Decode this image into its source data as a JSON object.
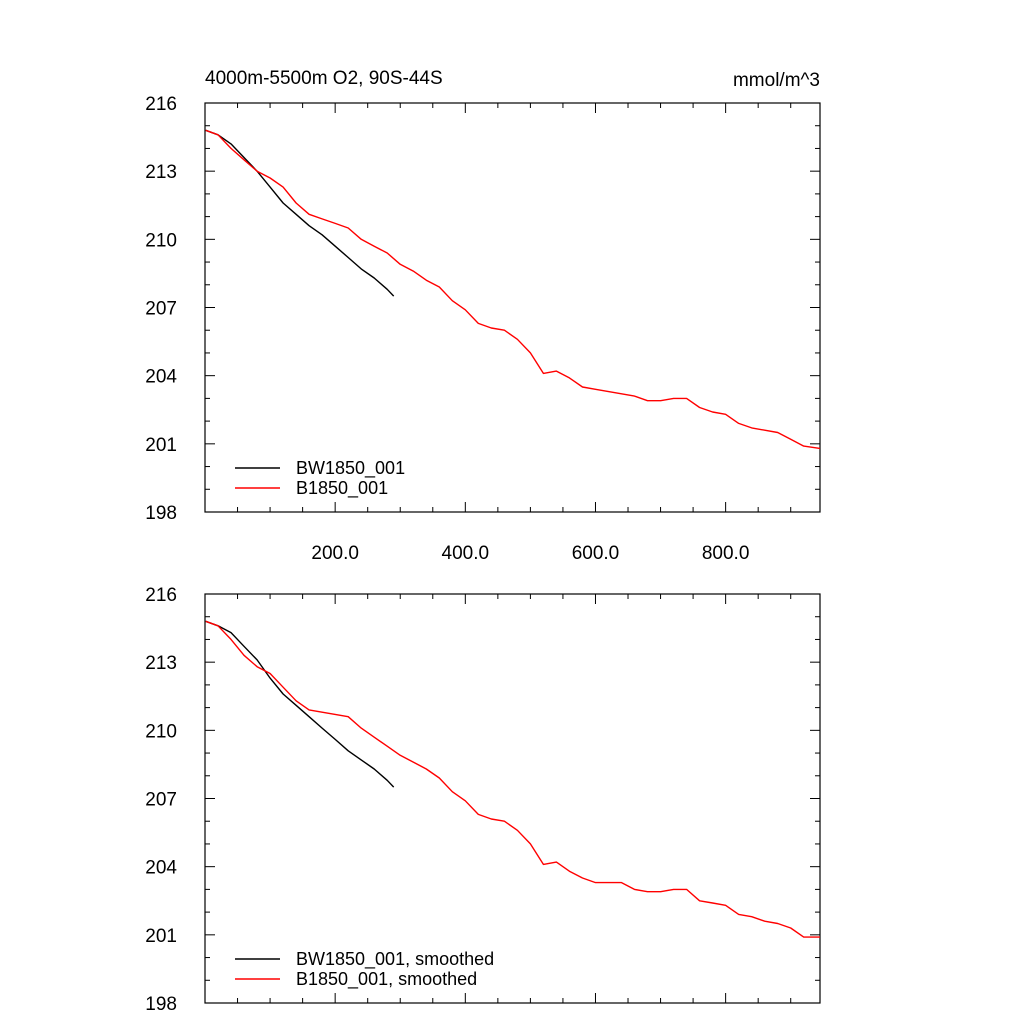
{
  "chart_data": [
    {
      "type": "line",
      "title": "4000m-5500m O2, 90S-44S",
      "units": "mmol/m^3",
      "xlabel": "",
      "ylabel": "",
      "xlim": [
        0,
        945
      ],
      "ylim": [
        198,
        216
      ],
      "xticks": [
        200,
        400,
        600,
        800
      ],
      "xtick_labels": [
        "200.0",
        "400.0",
        "600.0",
        "800.0"
      ],
      "yticks": [
        198,
        201,
        204,
        207,
        210,
        213,
        216
      ],
      "ytick_labels": [
        "198",
        "201",
        "204",
        "207",
        "210",
        "213",
        "216"
      ],
      "grid": false,
      "legend_position": "bottom-left",
      "series": [
        {
          "name": "BW1850_001",
          "color": "#000000",
          "x": [
            1,
            20,
            40,
            60,
            80,
            100,
            120,
            140,
            160,
            180,
            200,
            220,
            240,
            260,
            280,
            290
          ],
          "y": [
            214.8,
            214.6,
            214.2,
            213.6,
            213.0,
            212.3,
            211.6,
            211.1,
            210.6,
            210.2,
            209.7,
            209.2,
            208.7,
            208.3,
            207.8,
            207.5
          ]
        },
        {
          "name": "B1850_001",
          "color": "#ff0000",
          "x": [
            1,
            20,
            40,
            60,
            80,
            100,
            120,
            140,
            160,
            180,
            200,
            220,
            240,
            260,
            280,
            300,
            320,
            340,
            360,
            380,
            400,
            420,
            440,
            460,
            480,
            500,
            520,
            540,
            560,
            580,
            600,
            620,
            640,
            660,
            680,
            700,
            720,
            740,
            760,
            780,
            800,
            820,
            840,
            860,
            880,
            900,
            920,
            945
          ],
          "y": [
            214.8,
            214.6,
            214.0,
            213.5,
            213.0,
            212.7,
            212.3,
            211.6,
            211.1,
            210.9,
            210.7,
            210.5,
            210.0,
            209.7,
            209.4,
            208.9,
            208.6,
            208.2,
            207.9,
            207.3,
            206.9,
            206.3,
            206.1,
            206.0,
            205.6,
            205.0,
            204.1,
            204.2,
            203.9,
            203.5,
            203.4,
            203.3,
            203.2,
            203.1,
            202.9,
            202.9,
            203.0,
            203.0,
            202.6,
            202.4,
            202.3,
            201.9,
            201.7,
            201.6,
            201.5,
            201.2,
            200.9,
            200.8
          ]
        }
      ]
    },
    {
      "type": "line",
      "title": "",
      "xlabel": "",
      "ylabel": "",
      "xlim": [
        0,
        945
      ],
      "ylim": [
        198,
        216
      ],
      "xticks": [
        200,
        400,
        600,
        800
      ],
      "xtick_labels": [],
      "yticks": [
        198,
        201,
        204,
        207,
        210,
        213,
        216
      ],
      "ytick_labels": [
        "198",
        "201",
        "204",
        "207",
        "210",
        "213",
        "216"
      ],
      "grid": false,
      "legend_position": "bottom-left",
      "series": [
        {
          "name": "BW1850_001, smoothed",
          "color": "#000000",
          "x": [
            1,
            20,
            40,
            60,
            80,
            100,
            120,
            140,
            160,
            180,
            200,
            220,
            240,
            260,
            280,
            290
          ],
          "y": [
            214.8,
            214.6,
            214.3,
            213.7,
            213.1,
            212.3,
            211.6,
            211.1,
            210.6,
            210.1,
            209.6,
            209.1,
            208.7,
            208.3,
            207.8,
            207.5
          ]
        },
        {
          "name": "B1850_001, smoothed",
          "color": "#ff0000",
          "x": [
            1,
            20,
            40,
            60,
            80,
            100,
            120,
            140,
            160,
            180,
            200,
            220,
            240,
            260,
            280,
            300,
            320,
            340,
            360,
            380,
            400,
            420,
            440,
            460,
            480,
            500,
            520,
            540,
            560,
            580,
            600,
            620,
            640,
            660,
            680,
            700,
            720,
            740,
            760,
            780,
            800,
            820,
            840,
            860,
            880,
            900,
            920,
            945
          ],
          "y": [
            214.8,
            214.6,
            214.0,
            213.3,
            212.8,
            212.5,
            211.9,
            211.3,
            210.9,
            210.8,
            210.7,
            210.6,
            210.1,
            209.7,
            209.3,
            208.9,
            208.6,
            208.3,
            207.9,
            207.3,
            206.9,
            206.3,
            206.1,
            206.0,
            205.6,
            205.0,
            204.1,
            204.2,
            203.8,
            203.5,
            203.3,
            203.3,
            203.3,
            203.0,
            202.9,
            202.9,
            203.0,
            203.0,
            202.5,
            202.4,
            202.3,
            201.9,
            201.8,
            201.6,
            201.5,
            201.3,
            200.9,
            200.9
          ]
        }
      ]
    }
  ]
}
